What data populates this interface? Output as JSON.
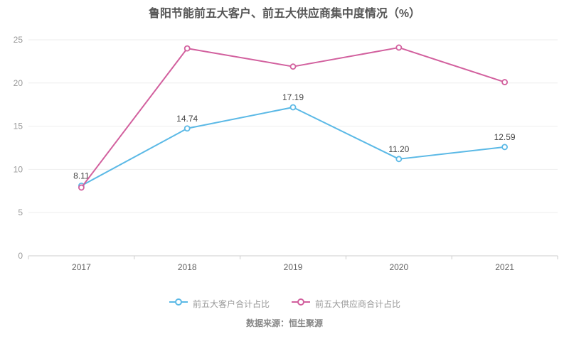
{
  "title": "鲁阳节能前五大客户、前五大供应商集中度情况（%）",
  "footer": {
    "source": "数据来源：恒生聚源"
  },
  "chart_data": {
    "type": "line",
    "title": "鲁阳节能前五大客户、前五大供应商集中度情况（%）",
    "categories": [
      "2017",
      "2018",
      "2019",
      "2020",
      "2021"
    ],
    "series": [
      {
        "name": "前五大客户合计占比",
        "color": "#5bb9e6",
        "values": [
          8.11,
          14.74,
          17.19,
          11.2,
          12.59
        ],
        "point_labels": [
          "8.11",
          "14.74",
          "17.19",
          "11.20",
          "12.59"
        ]
      },
      {
        "name": "前五大供应商合计占比",
        "color": "#d2609e",
        "values": [
          7.9,
          24.0,
          21.9,
          24.1,
          20.1
        ],
        "point_labels": []
      }
    ],
    "xlabel": "",
    "ylabel": "",
    "ylim": [
      0,
      25
    ],
    "yticks": [
      0,
      5,
      10,
      15,
      20,
      25
    ],
    "grid": true,
    "legend_position": "bottom",
    "colors": {
      "grid": "#eeeeee",
      "axis": "#cccccc",
      "y_tick_label": "#999999",
      "x_tick_label": "#666666",
      "data_label": "#444444"
    }
  }
}
